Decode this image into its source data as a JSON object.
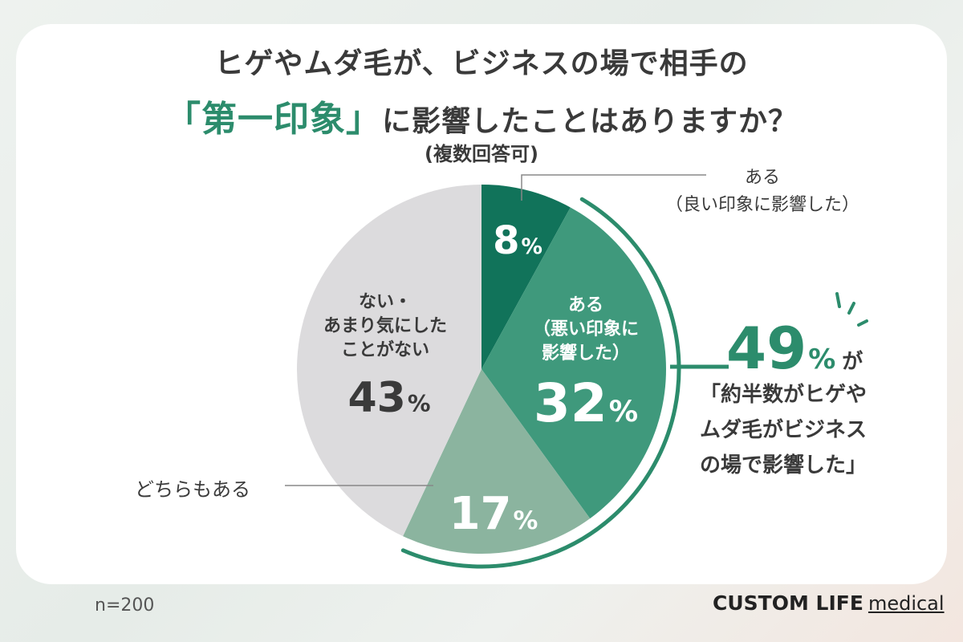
{
  "title": {
    "line1": "ヒゲやムダ毛が、ビジネスの場で相手の",
    "line2_highlight": "「第一印象」",
    "line2_rest": "に影響したことはありますか？",
    "line3": "(複数回答可)"
  },
  "chart_data": {
    "type": "pie",
    "categories": [
      "ある（良い印象に影響した）",
      "ある（悪い印象に影響した）",
      "どちらもある",
      "ない・あまり気にしたことがない"
    ],
    "values": [
      8,
      32,
      17,
      43
    ],
    "unit": "%",
    "colors": [
      "#11735a",
      "#3f997c",
      "#8bb49f",
      "#dcdbdd"
    ],
    "start_angle_deg": 0,
    "direction": "clockwise"
  },
  "labels": {
    "good": {
      "line1": "ある",
      "line2": "（良い印象に影響した）",
      "value": "8",
      "unit": "%"
    },
    "bad": {
      "line1": "ある",
      "line2": "（悪い印象に",
      "line3": "影響した）",
      "value": "32",
      "unit": "%"
    },
    "both": {
      "line1": "どちらもある",
      "value": "17",
      "unit": "%"
    },
    "none": {
      "line1": "ない・",
      "line2": "あまり気にした",
      "line3": "ことがない",
      "value": "43",
      "unit": "%"
    }
  },
  "callout": {
    "value": "49",
    "unit": "%",
    "suffix": "が",
    "line1": "「約半数がヒゲや",
    "line2": "ムダ毛がビジネス",
    "line3": "の場で影響した」"
  },
  "footer": {
    "sample": "n=200",
    "logo_main": "CUSTOM LIFE",
    "logo_sub": "medical"
  }
}
